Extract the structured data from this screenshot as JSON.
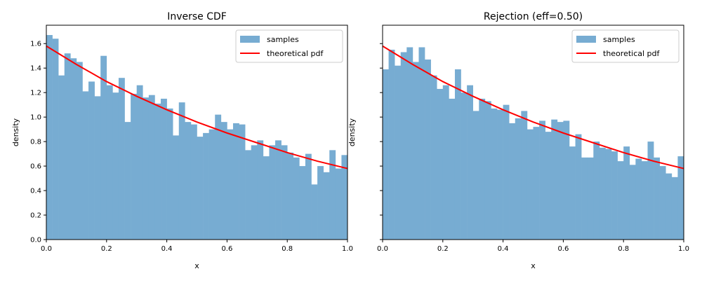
{
  "chart_data": [
    {
      "type": "bar",
      "title": "Inverse CDF",
      "xlabel": "x",
      "ylabel": "density",
      "xlim": [
        0,
        1
      ],
      "ylim": [
        0,
        1.75
      ],
      "xticks": [
        "0.0",
        "0.2",
        "0.4",
        "0.6",
        "0.8",
        "1.0"
      ],
      "yticks": [
        "0.0",
        "0.2",
        "0.4",
        "0.6",
        "0.8",
        "1.0",
        "1.2",
        "1.4",
        "1.6"
      ],
      "grid": false,
      "legend_position": "top-right",
      "legend": [
        "samples",
        "theoretical pdf"
      ],
      "bins": 50,
      "bin_width": 0.02,
      "values": [
        1.67,
        1.64,
        1.34,
        1.52,
        1.48,
        1.45,
        1.21,
        1.29,
        1.17,
        1.5,
        1.26,
        1.2,
        1.32,
        0.96,
        1.19,
        1.26,
        1.16,
        1.18,
        1.11,
        1.15,
        1.07,
        0.85,
        1.12,
        0.96,
        0.94,
        0.84,
        0.87,
        0.9,
        1.02,
        0.96,
        0.9,
        0.95,
        0.94,
        0.73,
        0.77,
        0.81,
        0.68,
        0.77,
        0.81,
        0.77,
        0.71,
        0.67,
        0.6,
        0.7,
        0.45,
        0.6,
        0.55,
        0.73,
        0.58,
        0.69
      ],
      "series": [
        {
          "name": "samples",
          "type": "histogram",
          "color": "#77acd2"
        },
        {
          "name": "theoretical pdf",
          "type": "line",
          "color": "#ff0000",
          "x": [
            0.0,
            0.1,
            0.2,
            0.3,
            0.4,
            0.5,
            0.6,
            0.7,
            0.8,
            0.9,
            1.0
          ],
          "y": [
            1.58,
            1.43,
            1.29,
            1.17,
            1.06,
            0.96,
            0.87,
            0.79,
            0.71,
            0.64,
            0.58
          ]
        }
      ]
    },
    {
      "type": "bar",
      "title": "Rejection (eff=0.50)",
      "xlabel": "x",
      "ylabel": "density",
      "xlim": [
        0,
        1
      ],
      "ylim": [
        0,
        1.75
      ],
      "xticks": [
        "0.0",
        "0.2",
        "0.4",
        "0.6",
        "0.8",
        "1.0"
      ],
      "grid": false,
      "shared_y": true,
      "legend_position": "top-right",
      "legend": [
        "samples",
        "theoretical pdf"
      ],
      "bins": 50,
      "bin_width": 0.02,
      "values": [
        1.39,
        1.55,
        1.42,
        1.53,
        1.57,
        1.45,
        1.57,
        1.47,
        1.34,
        1.23,
        1.26,
        1.15,
        1.39,
        1.2,
        1.26,
        1.05,
        1.15,
        1.13,
        1.07,
        1.06,
        1.1,
        0.95,
        0.99,
        1.05,
        0.9,
        0.92,
        0.97,
        0.88,
        0.98,
        0.96,
        0.97,
        0.76,
        0.86,
        0.67,
        0.67,
        0.8,
        0.75,
        0.74,
        0.72,
        0.64,
        0.76,
        0.61,
        0.66,
        0.64,
        0.8,
        0.67,
        0.6,
        0.54,
        0.51,
        0.68
      ],
      "series": [
        {
          "name": "samples",
          "type": "histogram",
          "color": "#77acd2"
        },
        {
          "name": "theoretical pdf",
          "type": "line",
          "color": "#ff0000",
          "x": [
            0.0,
            0.1,
            0.2,
            0.3,
            0.4,
            0.5,
            0.6,
            0.7,
            0.8,
            0.9,
            1.0
          ],
          "y": [
            1.58,
            1.43,
            1.29,
            1.17,
            1.06,
            0.96,
            0.87,
            0.79,
            0.71,
            0.64,
            0.58
          ]
        }
      ]
    }
  ]
}
